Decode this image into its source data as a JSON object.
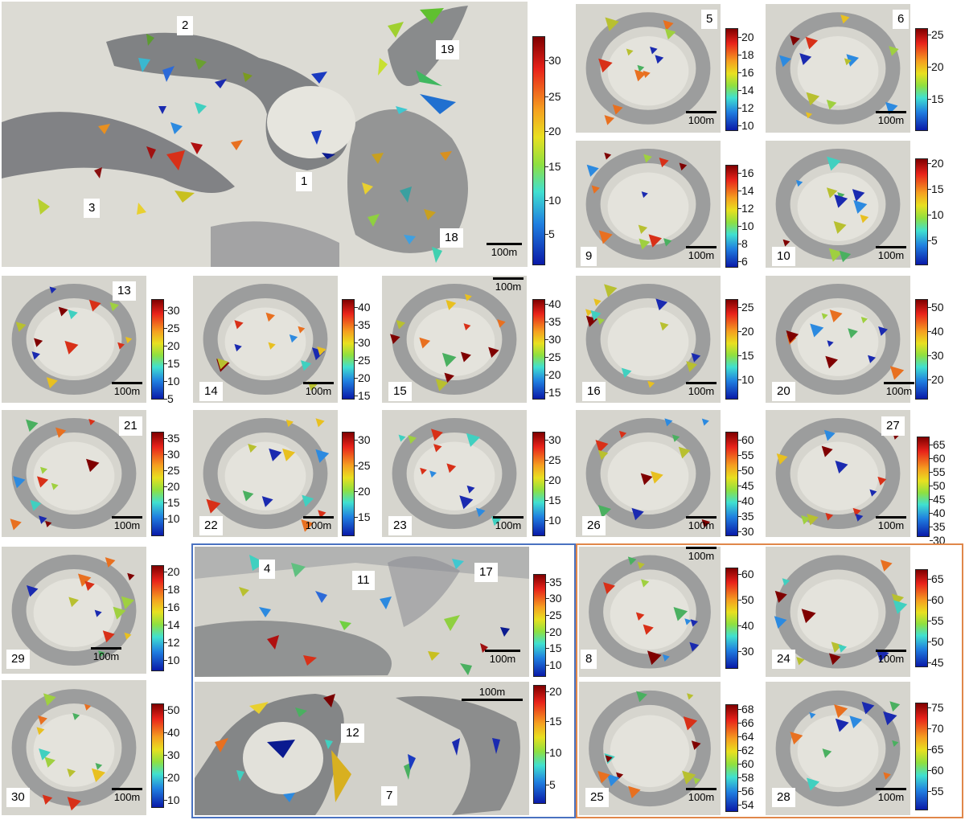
{
  "panels": {
    "main": {
      "labels": [
        "2",
        "19",
        "1",
        "3",
        "18"
      ],
      "scale": "100m",
      "ticks": [
        "30",
        "25",
        "20",
        "15",
        "10",
        "5"
      ]
    },
    "p5": {
      "label": "5",
      "scale": "100m",
      "ticks": [
        "20",
        "18",
        "16",
        "14",
        "12",
        "10"
      ]
    },
    "p6": {
      "label": "6",
      "scale": "100m",
      "ticks": [
        "25",
        "20",
        "15"
      ]
    },
    "p9": {
      "label": "9",
      "scale": "100m",
      "ticks": [
        "16",
        "14",
        "12",
        "10",
        "8",
        "6"
      ]
    },
    "p10": {
      "label": "10",
      "scale": "100m",
      "ticks": [
        "20",
        "15",
        "10",
        "5"
      ]
    },
    "p13": {
      "label": "13",
      "scale": "100m",
      "ticks": [
        "30",
        "25",
        "20",
        "15",
        "10",
        "5"
      ]
    },
    "p14": {
      "label": "14",
      "scale": "100m",
      "ticks": [
        "40",
        "35",
        "30",
        "25",
        "20",
        "15"
      ]
    },
    "p15": {
      "label": "15",
      "scale": "100m",
      "ticks": [
        "40",
        "35",
        "30",
        "25",
        "20",
        "15"
      ]
    },
    "p16": {
      "label": "16",
      "scale": "100m",
      "ticks": [
        "25",
        "20",
        "15",
        "10"
      ]
    },
    "p20": {
      "label": "20",
      "scale": "100m",
      "ticks": [
        "50",
        "40",
        "30",
        "20"
      ]
    },
    "p21": {
      "label": "21",
      "scale": "100m",
      "ticks": [
        "35",
        "30",
        "25",
        "20",
        "15",
        "10"
      ]
    },
    "p22": {
      "label": "22",
      "scale": "100m",
      "ticks": [
        "30",
        "25",
        "20",
        "15"
      ]
    },
    "p23": {
      "label": "23",
      "scale": "100m",
      "ticks": [
        "30",
        "25",
        "20",
        "15",
        "10"
      ]
    },
    "p26": {
      "label": "26",
      "scale": "100m",
      "ticks": [
        "60",
        "55",
        "50",
        "45",
        "40",
        "35",
        "30"
      ]
    },
    "p27": {
      "label": "27",
      "scale": "100m",
      "ticks": [
        "65",
        "60",
        "55",
        "50",
        "45",
        "40",
        "35",
        "30"
      ]
    },
    "p29": {
      "label": "29",
      "scale": "100m",
      "ticks": [
        "20",
        "18",
        "16",
        "14",
        "12",
        "10"
      ]
    },
    "p30": {
      "label": "30",
      "scale": "100m",
      "ticks": [
        "50",
        "40",
        "30",
        "20",
        "10"
      ]
    },
    "blue_top": {
      "labels": [
        "4",
        "11",
        "17"
      ],
      "scale": "100m",
      "ticks": [
        "35",
        "30",
        "25",
        "20",
        "15",
        "10"
      ]
    },
    "blue_bottom": {
      "labels": [
        "12",
        "7"
      ],
      "scale": "100m",
      "ticks": [
        "20",
        "15",
        "10",
        "5"
      ]
    },
    "p8": {
      "label": "8",
      "scale": "100m",
      "ticks": [
        "60",
        "50",
        "40",
        "30"
      ]
    },
    "p24": {
      "label": "24",
      "scale": "100m",
      "ticks": [
        "65",
        "60",
        "55",
        "50",
        "45"
      ]
    },
    "p25": {
      "label": "25",
      "scale": "100m",
      "ticks": [
        "68",
        "66",
        "64",
        "62",
        "60",
        "58",
        "56",
        "54"
      ]
    },
    "p28": {
      "label": "28",
      "scale": "100m",
      "ticks": [
        "75",
        "70",
        "65",
        "60",
        "55"
      ]
    }
  },
  "colors": {
    "blue_box": "#4a72c0",
    "orange_box": "#e0874a",
    "terrain_light": "#e2e1da",
    "terrain_dark": "#6a6c70"
  },
  "colorbar_range": {
    "top": "#7f0000",
    "bottom": "#0a1aa8"
  }
}
